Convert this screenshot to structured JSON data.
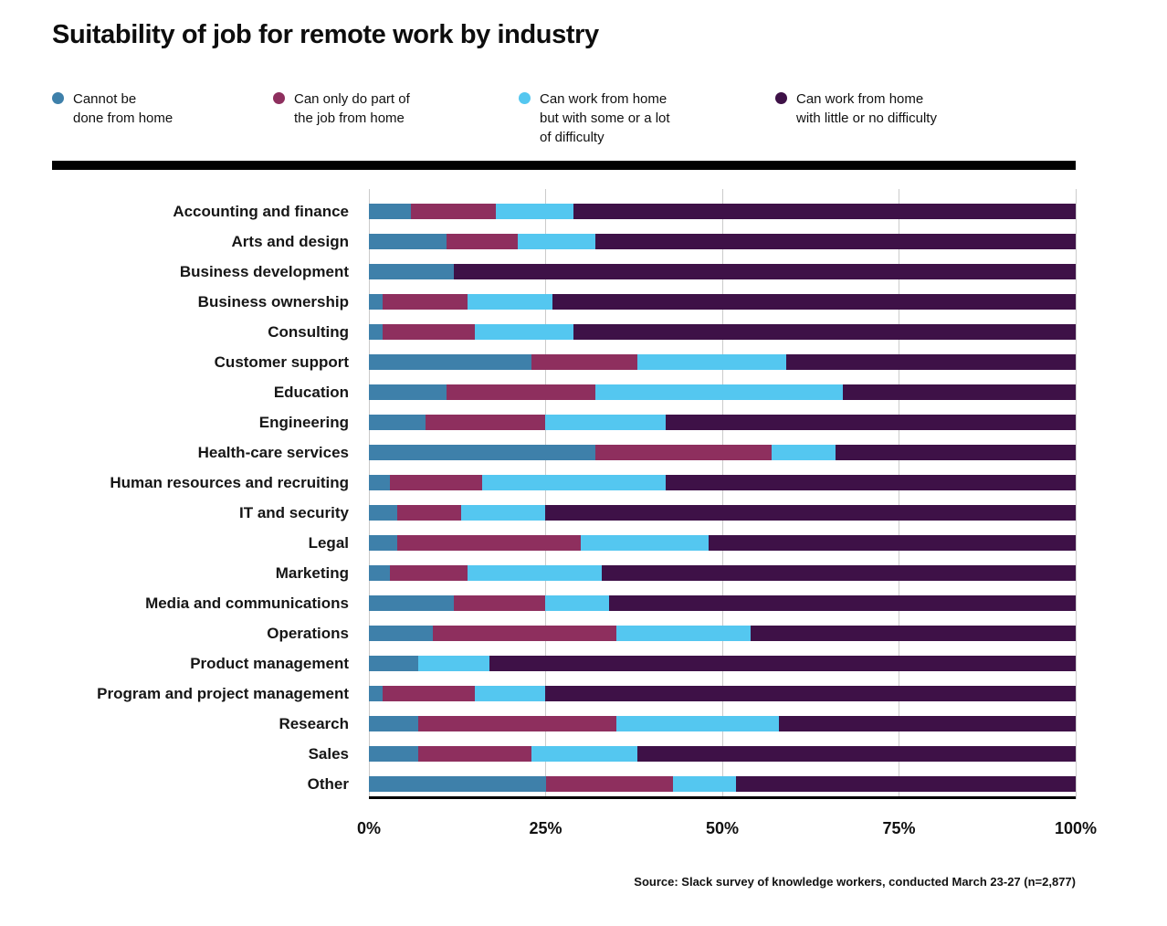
{
  "title": "Suitability of job for remote work by industry",
  "legend": [
    {
      "label": "Cannot be\ndone from home"
    },
    {
      "label": "Can only do part of\nthe job from home"
    },
    {
      "label": "Can work from home\nbut with some or a lot\nof difficulty"
    },
    {
      "label": "Can work from home\nwith little or no difficulty"
    }
  ],
  "chart_data": {
    "type": "bar",
    "stacked": true,
    "orientation": "horizontal",
    "title": "Suitability of job for remote work by industry",
    "xlim": [
      0,
      100
    ],
    "x_ticks": [
      "0%",
      "25%",
      "50%",
      "75%",
      "100%"
    ],
    "grid": true,
    "legend_position": "top",
    "categories": [
      "Accounting and finance",
      "Arts and design",
      "Business development",
      "Business ownership",
      "Consulting",
      "Customer support",
      "Education",
      "Engineering",
      "Health-care services",
      "Human resources and recruiting",
      "IT and security",
      "Legal",
      "Marketing",
      "Media and communications",
      "Operations",
      "Product management",
      "Program and project management",
      "Research",
      "Sales",
      "Other"
    ],
    "series": [
      {
        "name": "Cannot be done from home",
        "color": "#3e80aa",
        "values": [
          6,
          11,
          12,
          2,
          2,
          23,
          11,
          8,
          32,
          3,
          4,
          4,
          3,
          12,
          9,
          7,
          2,
          7,
          7,
          25
        ]
      },
      {
        "name": "Can only do part of the job from home",
        "color": "#8e2f5e",
        "values": [
          12,
          10,
          0,
          12,
          13,
          15,
          21,
          17,
          25,
          13,
          9,
          26,
          11,
          13,
          26,
          0,
          13,
          28,
          16,
          18
        ]
      },
      {
        "name": "Can work from home but with some or a lot of difficulty",
        "color": "#54c7f0",
        "values": [
          11,
          11,
          0,
          12,
          14,
          21,
          35,
          17,
          9,
          26,
          12,
          18,
          19,
          9,
          19,
          10,
          10,
          23,
          15,
          9
        ]
      },
      {
        "name": "Can work from home with little or no difficulty",
        "color": "#3e1147",
        "values": [
          71,
          68,
          88,
          74,
          71,
          41,
          33,
          58,
          34,
          58,
          75,
          52,
          67,
          66,
          46,
          83,
          75,
          42,
          62,
          48
        ]
      }
    ]
  },
  "source": "Source: Slack survey of knowledge workers, conducted March 23-27 (n=2,877)"
}
